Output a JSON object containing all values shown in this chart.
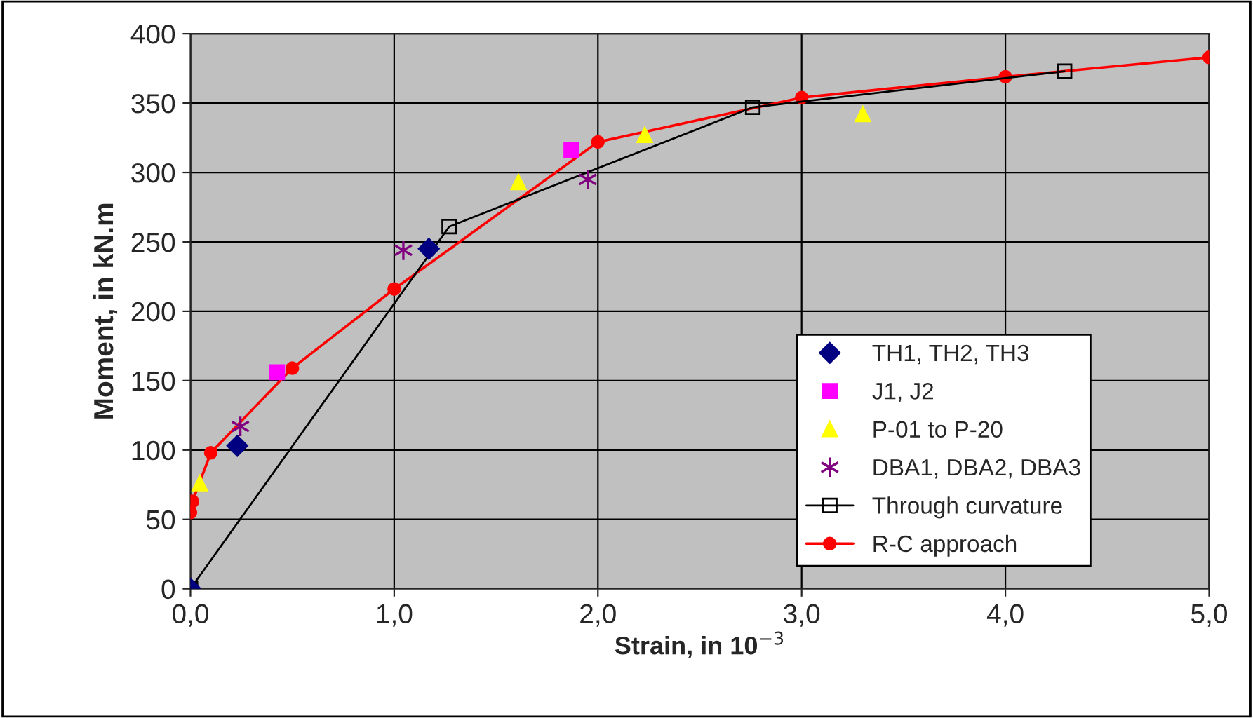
{
  "chart_data": {
    "type": "scatter",
    "xlabel": "Strain, in 10$^{−3}$",
    "ylabel": "Moment, in kN.m",
    "xlim": [
      0,
      5
    ],
    "xticks": [
      {
        "value": 0,
        "label": "0,0"
      },
      {
        "value": 1,
        "label": "1,0"
      },
      {
        "value": 2,
        "label": "2,0"
      },
      {
        "value": 3,
        "label": "3,0"
      },
      {
        "value": 4,
        "label": "4,0"
      },
      {
        "value": 5,
        "label": "5,0"
      }
    ],
    "ylim": [
      0,
      400
    ],
    "yticks": [
      0,
      50,
      100,
      150,
      200,
      250,
      300,
      350,
      400
    ],
    "grid": true,
    "legend": "bottom right",
    "series": [
      {
        "name": "TH1, TH2, TH3",
        "marker": "diamond",
        "color": "#000080",
        "x": [
          0,
          0.23,
          1.17
        ],
        "values": [
          0,
          103,
          245
        ]
      },
      {
        "name": "J1, J2",
        "marker": "square",
        "color": "#ff00ff",
        "x": [
          0.425,
          1.87
        ],
        "values": [
          156,
          316
        ]
      },
      {
        "name": "P-01 to P-20",
        "marker": "triangle",
        "color": "#ffff00",
        "x": [
          0.046,
          1.61,
          2.23,
          3.3
        ],
        "values": [
          76,
          293,
          327,
          342
        ]
      },
      {
        "name": "DBA1, DBA2, DBA3",
        "marker": "cross",
        "color": "#800080",
        "x": [
          0.245,
          1.045,
          1.95
        ],
        "values": [
          117,
          244,
          295
        ]
      },
      {
        "name": "Through curvature",
        "type": "line",
        "marker": "square",
        "color": "#000000",
        "x": [
          0,
          1.27,
          2.76,
          4.29
        ],
        "values": [
          0,
          261,
          347,
          373
        ]
      },
      {
        "name": "R-C approach",
        "type": "line",
        "marker": "circle",
        "color": "#ff0000",
        "x": [
          0,
          0.01,
          0.1,
          0.5,
          1.0,
          2.0,
          3.0,
          4.0,
          5.0
        ],
        "values": [
          55,
          63,
          98,
          159,
          216,
          322,
          354,
          369,
          383
        ]
      }
    ]
  }
}
